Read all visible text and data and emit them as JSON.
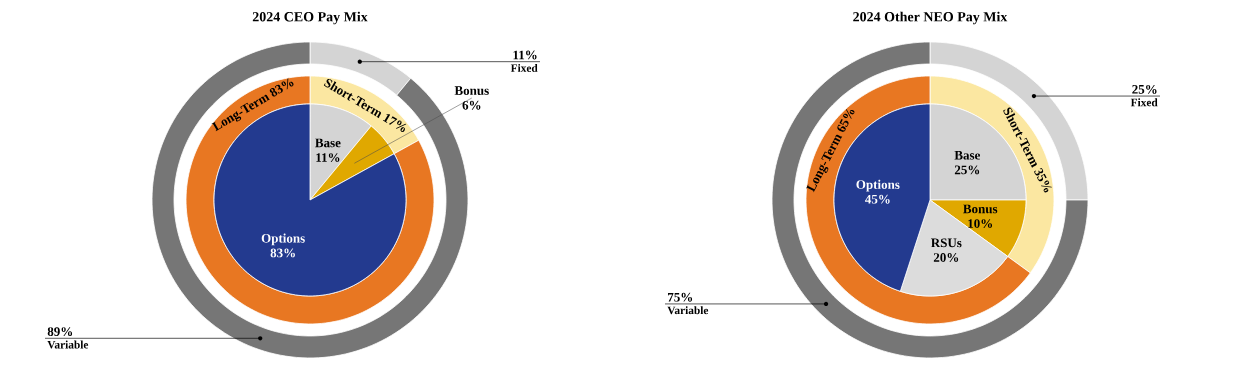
{
  "chart_data": [
    {
      "type": "donut",
      "title": "2024 CEO Pay Mix",
      "categories": [
        "Fixed",
        "Variable"
      ],
      "values": [
        11,
        89
      ],
      "colors": [
        "#d4d4d4",
        "#767676"
      ],
      "value_labels": [
        "11%",
        "89%"
      ]
    },
    {
      "type": "donut",
      "categories": [
        "Short-Term",
        "Long-Term"
      ],
      "values": [
        17,
        83
      ],
      "colors": [
        "#fbe7a1",
        "#e87722"
      ],
      "value_labels": [
        "17%",
        "83%"
      ]
    },
    {
      "type": "pie",
      "categories": [
        "Base",
        "Bonus",
        "Options"
      ],
      "values": [
        11,
        6,
        83
      ],
      "colors": [
        "#d4d4d4",
        "#e0a800",
        "#233a8f"
      ],
      "value_labels": [
        "11%",
        "6%",
        "83%"
      ]
    },
    {
      "type": "donut",
      "title": "2024 Other NEO Pay Mix",
      "categories": [
        "Fixed",
        "Variable"
      ],
      "values": [
        25,
        75
      ],
      "colors": [
        "#d4d4d4",
        "#767676"
      ],
      "value_labels": [
        "25%",
        "75%"
      ]
    },
    {
      "type": "donut",
      "categories": [
        "Short-Term",
        "Long-Term"
      ],
      "values": [
        35,
        65
      ],
      "colors": [
        "#fbe7a1",
        "#e87722"
      ],
      "value_labels": [
        "35%",
        "65%"
      ]
    },
    {
      "type": "pie",
      "categories": [
        "Base",
        "Bonus",
        "RSUs",
        "Options"
      ],
      "values": [
        25,
        10,
        20,
        45
      ],
      "colors": [
        "#d4d4d4",
        "#e0a800",
        "#dcdcdc",
        "#233a8f"
      ],
      "value_labels": [
        "25%",
        "10%",
        "20%",
        "45%"
      ]
    }
  ]
}
